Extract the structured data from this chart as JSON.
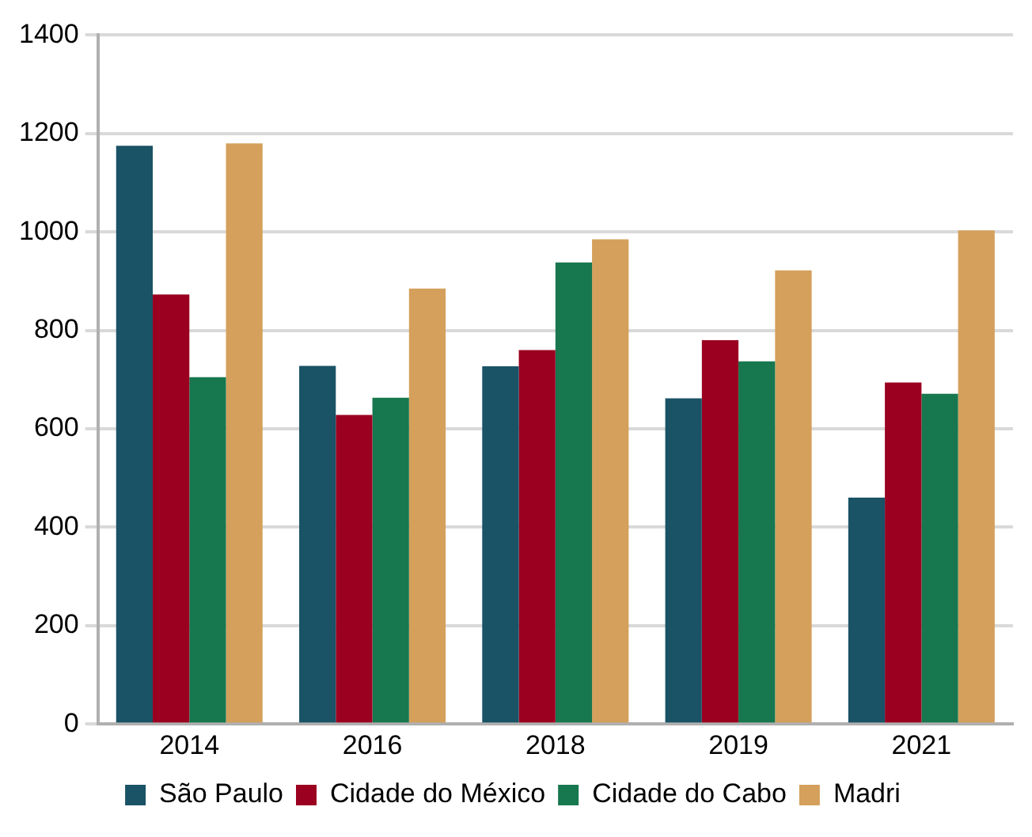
{
  "chart_data": {
    "type": "bar",
    "categories": [
      "2014",
      "2016",
      "2018",
      "2019",
      "2021"
    ],
    "series": [
      {
        "name": "São Paulo",
        "color": "#1a5266",
        "values": [
          1175,
          728,
          727,
          662,
          460
        ]
      },
      {
        "name": "Cidade do México",
        "color": "#9b0020",
        "values": [
          873,
          628,
          760,
          780,
          694
        ]
      },
      {
        "name": "Cidade do Cabo",
        "color": "#17774f",
        "values": [
          705,
          663,
          938,
          737,
          671
        ]
      },
      {
        "name": "Madri",
        "color": "#d4a05b",
        "values": [
          1180,
          885,
          985,
          922,
          1003
        ]
      }
    ],
    "ylim": [
      0,
      1400
    ],
    "yticks": [
      0,
      200,
      400,
      600,
      800,
      1000,
      1200,
      1400
    ],
    "grid": "y",
    "legend": "bottom"
  }
}
